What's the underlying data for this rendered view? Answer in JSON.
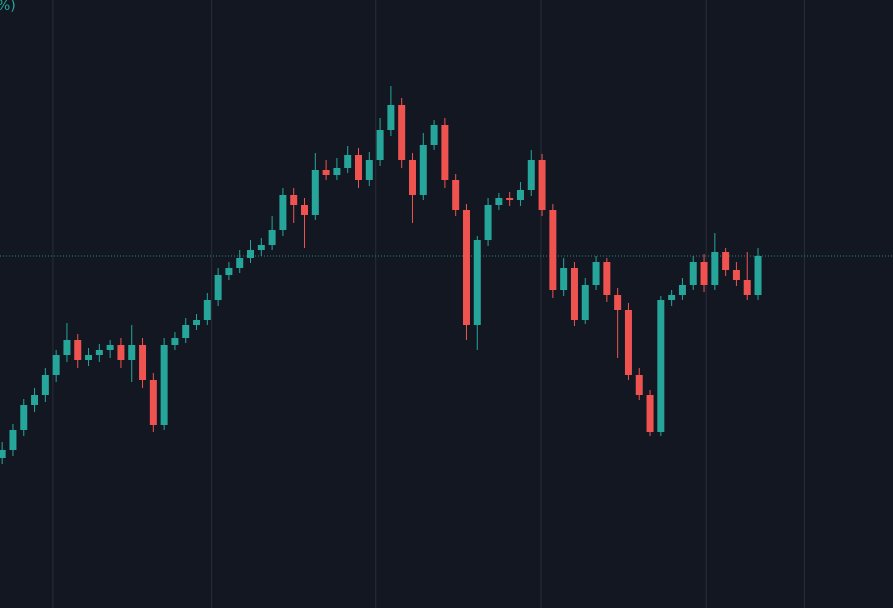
{
  "chart_data": {
    "type": "candlestick",
    "title": "%)",
    "up_color": "#26a69a",
    "down_color": "#ef5350",
    "grid": true,
    "xlim": [
      -0.2,
      82.5
    ],
    "ylim": [
      0,
      608
    ],
    "xticks": [
      4.7,
      19.4,
      34.6,
      49.9,
      65.2,
      74.3
    ],
    "x": [
      0,
      1,
      2,
      3,
      4,
      5,
      6,
      7,
      8,
      9,
      10,
      11,
      12,
      13,
      14,
      15,
      16,
      17,
      18,
      19,
      20,
      21,
      22,
      23,
      24,
      25,
      26,
      27,
      28,
      29,
      30,
      31,
      32,
      33,
      34,
      35,
      36,
      37,
      38,
      39,
      40,
      41,
      42,
      43,
      44,
      45,
      46,
      47,
      48,
      49,
      50,
      51,
      52,
      53,
      54,
      55,
      56,
      57,
      58,
      59,
      60,
      61,
      62,
      63,
      64,
      65,
      66,
      67,
      68,
      69,
      70
    ],
    "open": [
      150,
      158,
      178,
      203,
      213,
      233,
      253,
      268,
      248,
      253,
      258,
      263,
      248,
      263,
      228,
      183,
      263,
      270,
      283,
      288,
      308,
      333,
      340,
      350,
      358,
      363,
      378,
      413,
      403,
      393,
      438,
      433,
      440,
      453,
      428,
      448,
      478,
      503,
      448,
      413,
      463,
      483,
      428,
      398,
      283,
      368,
      403,
      410,
      408,
      418,
      448,
      398,
      318,
      340,
      288,
      323,
      346,
      313,
      298,
      233,
      213,
      176,
      308,
      313,
      323,
      346,
      323,
      356,
      338,
      328,
      313
    ],
    "high": [
      166,
      184,
      209,
      220,
      240,
      258,
      285,
      274,
      260,
      264,
      268,
      270,
      283,
      270,
      235,
      270,
      276,
      290,
      294,
      315,
      340,
      346,
      358,
      368,
      370,
      392,
      420,
      420,
      410,
      455,
      448,
      450,
      462,
      460,
      456,
      490,
      522,
      510,
      455,
      475,
      488,
      490,
      434,
      404,
      372,
      410,
      415,
      416,
      426,
      458,
      454,
      404,
      350,
      346,
      330,
      352,
      350,
      320,
      305,
      240,
      218,
      312,
      318,
      330,
      352,
      354,
      375,
      360,
      346,
      356,
      360
    ],
    "low": [
      144,
      152,
      172,
      196,
      206,
      226,
      246,
      240,
      242,
      246,
      250,
      240,
      226,
      220,
      176,
      178,
      258,
      265,
      278,
      283,
      302,
      328,
      335,
      345,
      352,
      358,
      372,
      385,
      360,
      388,
      428,
      428,
      435,
      420,
      422,
      442,
      472,
      440,
      385,
      408,
      458,
      420,
      392,
      268,
      258,
      362,
      398,
      402,
      402,
      412,
      392,
      310,
      312,
      282,
      284,
      318,
      306,
      250,
      228,
      208,
      172,
      172,
      302,
      308,
      318,
      316,
      318,
      332,
      322,
      308,
      308
    ],
    "close": [
      158,
      178,
      203,
      213,
      233,
      253,
      268,
      248,
      253,
      258,
      263,
      248,
      263,
      228,
      183,
      263,
      270,
      283,
      288,
      308,
      333,
      340,
      350,
      358,
      363,
      378,
      413,
      403,
      393,
      438,
      433,
      440,
      453,
      428,
      448,
      478,
      503,
      448,
      413,
      463,
      483,
      428,
      398,
      283,
      368,
      403,
      410,
      408,
      418,
      448,
      398,
      318,
      340,
      288,
      323,
      346,
      313,
      298,
      233,
      213,
      176,
      308,
      313,
      323,
      346,
      323,
      356,
      338,
      328,
      313,
      352
    ]
  }
}
